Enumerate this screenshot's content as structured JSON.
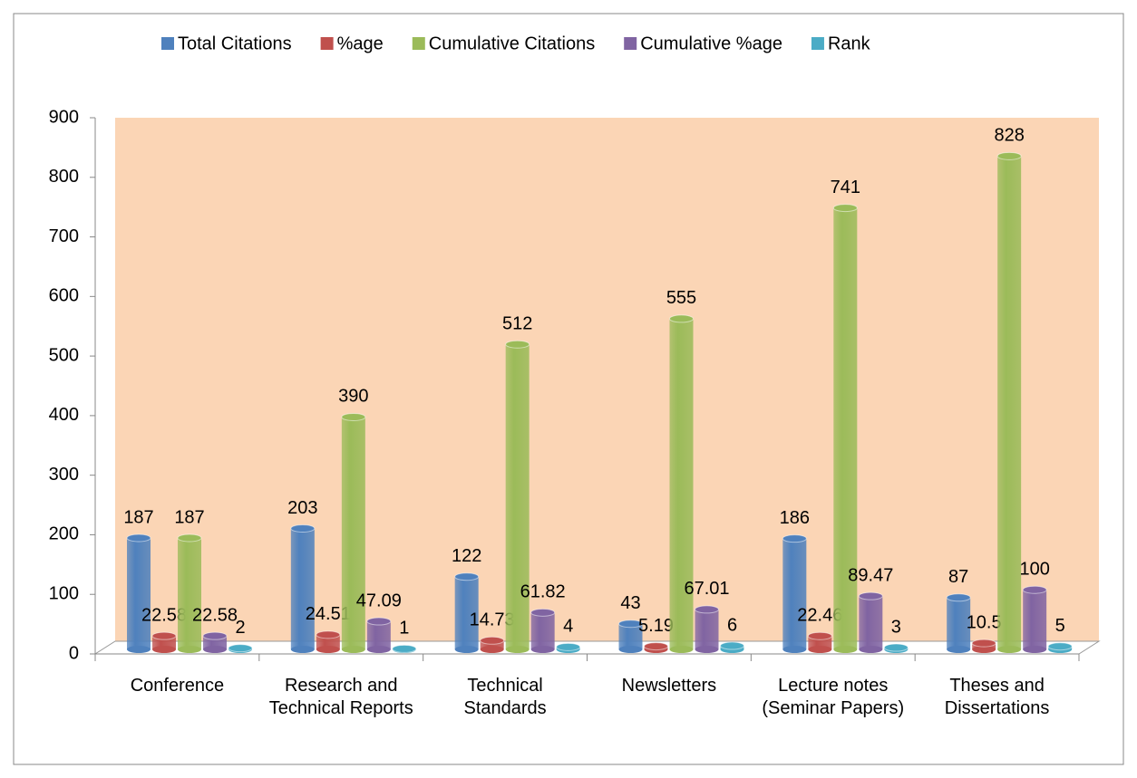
{
  "chart_data": {
    "type": "bar",
    "categories": [
      "Conference",
      "Research and Technical Reports",
      "Technical Standards",
      "Newsletters",
      "Lecture notes (Seminar Papers)",
      "Theses and Dissertations"
    ],
    "series": [
      {
        "name": "Total Citations",
        "color": "#4F81BD",
        "values": [
          187,
          203,
          122,
          43,
          186,
          87
        ]
      },
      {
        "name": "%age",
        "color": "#C0504D",
        "values": [
          22.58,
          24.51,
          14.73,
          5.19,
          22.46,
          10.5
        ]
      },
      {
        "name": "Cumulative Citations",
        "color": "#9BBB59",
        "values": [
          187,
          390,
          512,
          555,
          741,
          828
        ]
      },
      {
        "name": "Cumulative %age",
        "color": "#8064A2",
        "values": [
          22.58,
          47.09,
          61.82,
          67.01,
          89.47,
          100
        ]
      },
      {
        "name": "Rank",
        "color": "#4BACC6",
        "values": [
          2,
          1,
          4,
          6,
          3,
          5
        ]
      }
    ],
    "ylim": [
      0,
      900
    ],
    "yticks": [
      0,
      100,
      200,
      300,
      400,
      500,
      600,
      700,
      800,
      900
    ],
    "legend": "top",
    "background": "#FBD5B5"
  }
}
